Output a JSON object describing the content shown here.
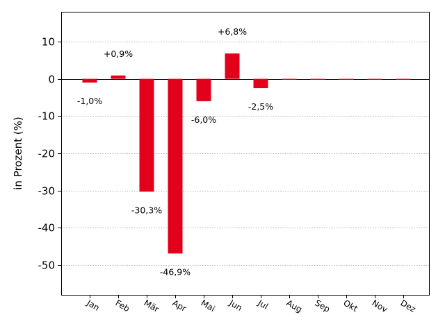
{
  "chart_data": {
    "type": "bar",
    "categories": [
      "Jan",
      "Feb",
      "Mär",
      "Apr",
      "Mai",
      "Jun",
      "Jul",
      "Aug",
      "Sep",
      "Okt",
      "Nov",
      "Dez"
    ],
    "values": [
      -1.0,
      0.9,
      -30.3,
      -46.9,
      -6.0,
      6.8,
      -2.5,
      0,
      0,
      0,
      0,
      0
    ],
    "data_labels": [
      "-1,0%",
      "+0,9%",
      "-30,3%",
      "-46,9%",
      "-6,0%",
      "+6,8%",
      "-2,5%",
      "",
      "",
      "",
      "",
      ""
    ],
    "ylabel": "in Prozent (%)",
    "xlabel": "",
    "title": "",
    "ylim": [
      -58,
      18
    ],
    "yticks": [
      10,
      0,
      -10,
      -20,
      -30,
      -40,
      -50
    ],
    "ytick_labels": [
      "10",
      "0",
      "-10",
      "-20",
      "-30",
      "-40",
      "-50"
    ],
    "grid": "horizontal dotted",
    "bar_color": "#e2001a"
  }
}
